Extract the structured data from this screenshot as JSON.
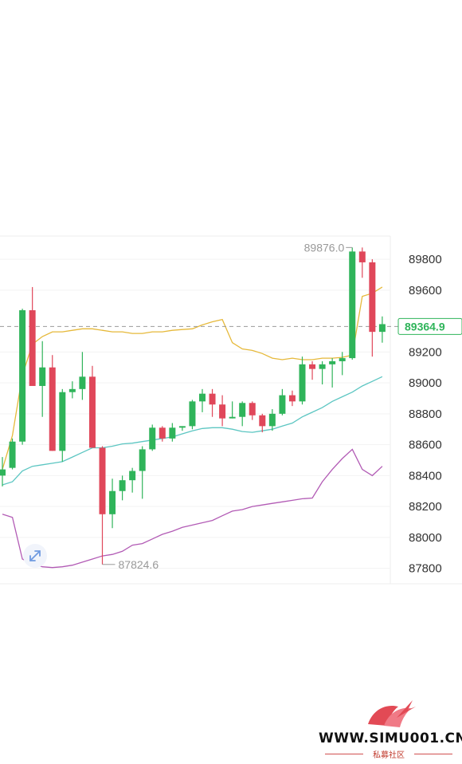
{
  "chart_data": {
    "type": "candlestick",
    "ylim": [
      87700,
      89950
    ],
    "yticks": [
      87800,
      88000,
      88200,
      88400,
      88600,
      88800,
      89000,
      89200,
      89600,
      89800
    ],
    "current_price": "89364.9",
    "high_label": "89876.0",
    "low_label": "87824.6",
    "colors": {
      "up": "#2fb45a",
      "down": "#e0475a",
      "ma": "#e6b93a",
      "upper_band": "#5cc6c2",
      "lower_band": "#b25bb5",
      "price_line": "#999999",
      "price_tag": "#2fb45a"
    },
    "candles": [
      {
        "o": 88400,
        "h": 88520,
        "l": 88330,
        "c": 88440
      },
      {
        "o": 88450,
        "h": 88640,
        "l": 88440,
        "c": 88620
      },
      {
        "o": 88620,
        "h": 89480,
        "l": 88600,
        "c": 89470
      },
      {
        "o": 89470,
        "h": 89620,
        "l": 89000,
        "c": 88980
      },
      {
        "o": 88980,
        "h": 89270,
        "l": 88780,
        "c": 89100
      },
      {
        "o": 89100,
        "h": 89180,
        "l": 88560,
        "c": 88560
      },
      {
        "o": 88560,
        "h": 88960,
        "l": 88490,
        "c": 88940
      },
      {
        "o": 88940,
        "h": 89010,
        "l": 88900,
        "c": 88960
      },
      {
        "o": 88960,
        "h": 89200,
        "l": 88890,
        "c": 89040
      },
      {
        "o": 89040,
        "h": 89110,
        "l": 88580,
        "c": 88580
      },
      {
        "o": 88580,
        "h": 88590,
        "l": 87825,
        "c": 88150
      },
      {
        "o": 88150,
        "h": 88380,
        "l": 88060,
        "c": 88300
      },
      {
        "o": 88300,
        "h": 88400,
        "l": 88240,
        "c": 88370
      },
      {
        "o": 88370,
        "h": 88450,
        "l": 88290,
        "c": 88430
      },
      {
        "o": 88430,
        "h": 88590,
        "l": 88250,
        "c": 88570
      },
      {
        "o": 88570,
        "h": 88730,
        "l": 88560,
        "c": 88710
      },
      {
        "o": 88710,
        "h": 88720,
        "l": 88620,
        "c": 88640
      },
      {
        "o": 88640,
        "h": 88740,
        "l": 88620,
        "c": 88710
      },
      {
        "o": 88710,
        "h": 88720,
        "l": 88690,
        "c": 88720
      },
      {
        "o": 88720,
        "h": 88890,
        "l": 88700,
        "c": 88880
      },
      {
        "o": 88880,
        "h": 88960,
        "l": 88810,
        "c": 88930
      },
      {
        "o": 88930,
        "h": 88960,
        "l": 88780,
        "c": 88860
      },
      {
        "o": 88860,
        "h": 88920,
        "l": 88720,
        "c": 88770
      },
      {
        "o": 88770,
        "h": 88880,
        "l": 88770,
        "c": 88780
      },
      {
        "o": 88780,
        "h": 88880,
        "l": 88720,
        "c": 88870
      },
      {
        "o": 88870,
        "h": 88880,
        "l": 88760,
        "c": 88790
      },
      {
        "o": 88790,
        "h": 88800,
        "l": 88680,
        "c": 88720
      },
      {
        "o": 88720,
        "h": 88830,
        "l": 88690,
        "c": 88800
      },
      {
        "o": 88800,
        "h": 88960,
        "l": 88790,
        "c": 88920
      },
      {
        "o": 88920,
        "h": 88950,
        "l": 88850,
        "c": 88880
      },
      {
        "o": 88880,
        "h": 89170,
        "l": 88860,
        "c": 89120
      },
      {
        "o": 89120,
        "h": 89140,
        "l": 89020,
        "c": 89090
      },
      {
        "o": 89090,
        "h": 89140,
        "l": 88990,
        "c": 89120
      },
      {
        "o": 89120,
        "h": 89160,
        "l": 88970,
        "c": 89140
      },
      {
        "o": 89140,
        "h": 89200,
        "l": 89050,
        "c": 89160
      },
      {
        "o": 89160,
        "h": 89876,
        "l": 89150,
        "c": 89850
      },
      {
        "o": 89850,
        "h": 89876,
        "l": 89680,
        "c": 89780
      },
      {
        "o": 89780,
        "h": 89800,
        "l": 89170,
        "c": 89330
      },
      {
        "o": 89330,
        "h": 89430,
        "l": 89260,
        "c": 89380
      }
    ],
    "ma": [
      88440,
      88660,
      89050,
      89250,
      89300,
      89330,
      89330,
      89340,
      89350,
      89350,
      89340,
      89330,
      89330,
      89320,
      89320,
      89330,
      89330,
      89340,
      89345,
      89350,
      89375,
      89395,
      89410,
      89260,
      89220,
      89210,
      89190,
      89160,
      89150,
      89160,
      89150,
      89150,
      89160,
      89160,
      89165,
      89180,
      89560,
      89580,
      89620
    ],
    "upper_band": [
      88340,
      88360,
      88430,
      88460,
      88470,
      88480,
      88490,
      88520,
      88550,
      88580,
      88580,
      88590,
      88605,
      88610,
      88620,
      88630,
      88640,
      88650,
      88670,
      88690,
      88705,
      88710,
      88710,
      88700,
      88685,
      88680,
      88690,
      88700,
      88720,
      88740,
      88780,
      88810,
      88840,
      88880,
      88910,
      88940,
      88980,
      89010,
      89040
    ],
    "lower_band": [
      88150,
      88130,
      87860,
      87830,
      87810,
      87805,
      87810,
      87820,
      87840,
      87860,
      87880,
      87890,
      87910,
      87950,
      87960,
      87990,
      88020,
      88040,
      88065,
      88080,
      88095,
      88110,
      88140,
      88170,
      88180,
      88200,
      88210,
      88220,
      88230,
      88240,
      88250,
      88255,
      88360,
      88440,
      88510,
      88570,
      88440,
      88400,
      88460
    ]
  },
  "watermark": {
    "url": "WWW.SIMU001.CN",
    "sub": "私募社区"
  }
}
